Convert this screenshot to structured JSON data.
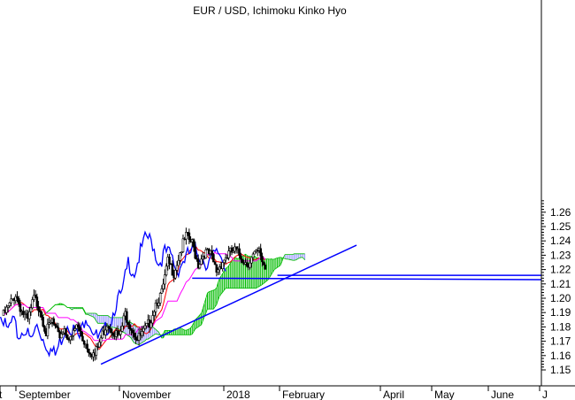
{
  "chart_data": {
    "type": "line",
    "title": "EUR / USD, Ichimoku Kinko Hyo",
    "xlabel": "",
    "ylabel": "",
    "ylim": [
      1.145,
      1.27
    ],
    "y_ticks": [
      1.15,
      1.16,
      1.17,
      1.18,
      1.19,
      1.2,
      1.21,
      1.22,
      1.23,
      1.24,
      1.25,
      1.26
    ],
    "x_tick_labels": [
      "t",
      "September",
      "November",
      "2018",
      "February",
      "April",
      "May",
      "June",
      "J"
    ],
    "grid": false,
    "colors": {
      "candle": "#000000",
      "tenkan": "#ff0000",
      "kijun": "#ff00ff",
      "chikou": "#0000ff",
      "cloud_bullish": "#00bb00",
      "cloud_bearish": "#9999ff",
      "trendline": "#0000ff"
    },
    "series": [
      {
        "name": "",
        "weeks": [
          0,
          1,
          2,
          3,
          4,
          5,
          6,
          7,
          8,
          9,
          10,
          11,
          12,
          13,
          14,
          15,
          16,
          17,
          18,
          19,
          20,
          21,
          22,
          23,
          24,
          25,
          26,
          27,
          28,
          29,
          30,
          31,
          32,
          33,
          34,
          35,
          36,
          37,
          38,
          39,
          40,
          41,
          42,
          43
        ],
        "values": [
          1.188,
          1.195,
          1.203,
          1.191,
          1.184,
          1.2,
          1.193,
          1.176,
          1.184,
          1.173,
          1.179,
          1.17,
          1.181,
          1.172,
          1.165,
          1.16,
          1.172,
          1.183,
          1.178,
          1.172,
          1.189,
          1.18,
          1.171,
          1.176,
          1.183,
          1.197,
          1.203,
          1.225,
          1.218,
          1.232,
          1.243,
          1.238,
          1.224,
          1.232,
          1.23,
          1.219,
          1.226,
          1.231,
          1.233,
          1.229,
          1.224,
          1.229,
          1.232,
          1.221
        ]
      }
    ],
    "annotations": [
      {
        "type": "trendline",
        "from": {
          "week": 16,
          "value": 1.154
        },
        "to": {
          "week": 58,
          "value": 1.237
        }
      },
      {
        "type": "horizontal",
        "from": {
          "week": 31,
          "value": 1.214
        },
        "to": {
          "week": 93,
          "value": 1.213
        }
      },
      {
        "type": "horizontal",
        "from": {
          "week": 45,
          "value": 1.216
        },
        "to": {
          "week": 93,
          "value": 1.216
        }
      }
    ]
  }
}
